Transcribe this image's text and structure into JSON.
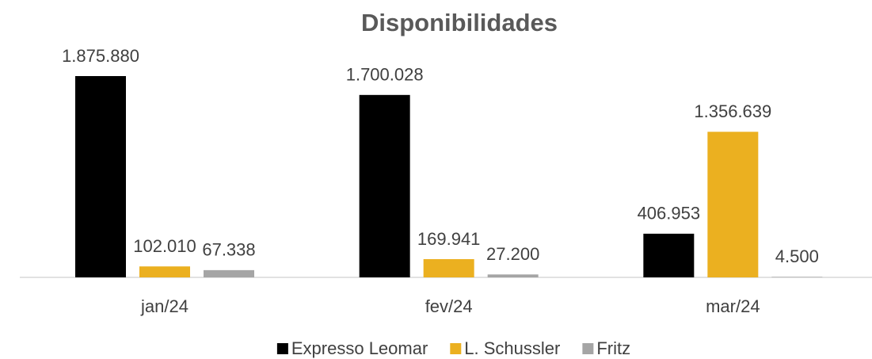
{
  "chart_data": {
    "type": "bar",
    "title": "Disponibilidades",
    "categories": [
      "jan/24",
      "fev/24",
      "mar/24"
    ],
    "series": [
      {
        "name": "Expresso Leomar",
        "color": "#000000",
        "values": [
          1875880,
          1700028,
          406953
        ],
        "value_labels": [
          "1.875.880",
          "1.700.028",
          "406.953"
        ]
      },
      {
        "name": "L. Schussler",
        "color": "#EBB020",
        "values": [
          102010,
          169941,
          1356639
        ],
        "value_labels": [
          "102.010",
          "169.941",
          "1.356.639"
        ]
      },
      {
        "name": "Fritz",
        "color": "#A5A5A5",
        "values": [
          67338,
          27200,
          4500
        ],
        "value_labels": [
          "67.338",
          "27.200",
          "4.500"
        ]
      }
    ],
    "legend": "bottom"
  }
}
